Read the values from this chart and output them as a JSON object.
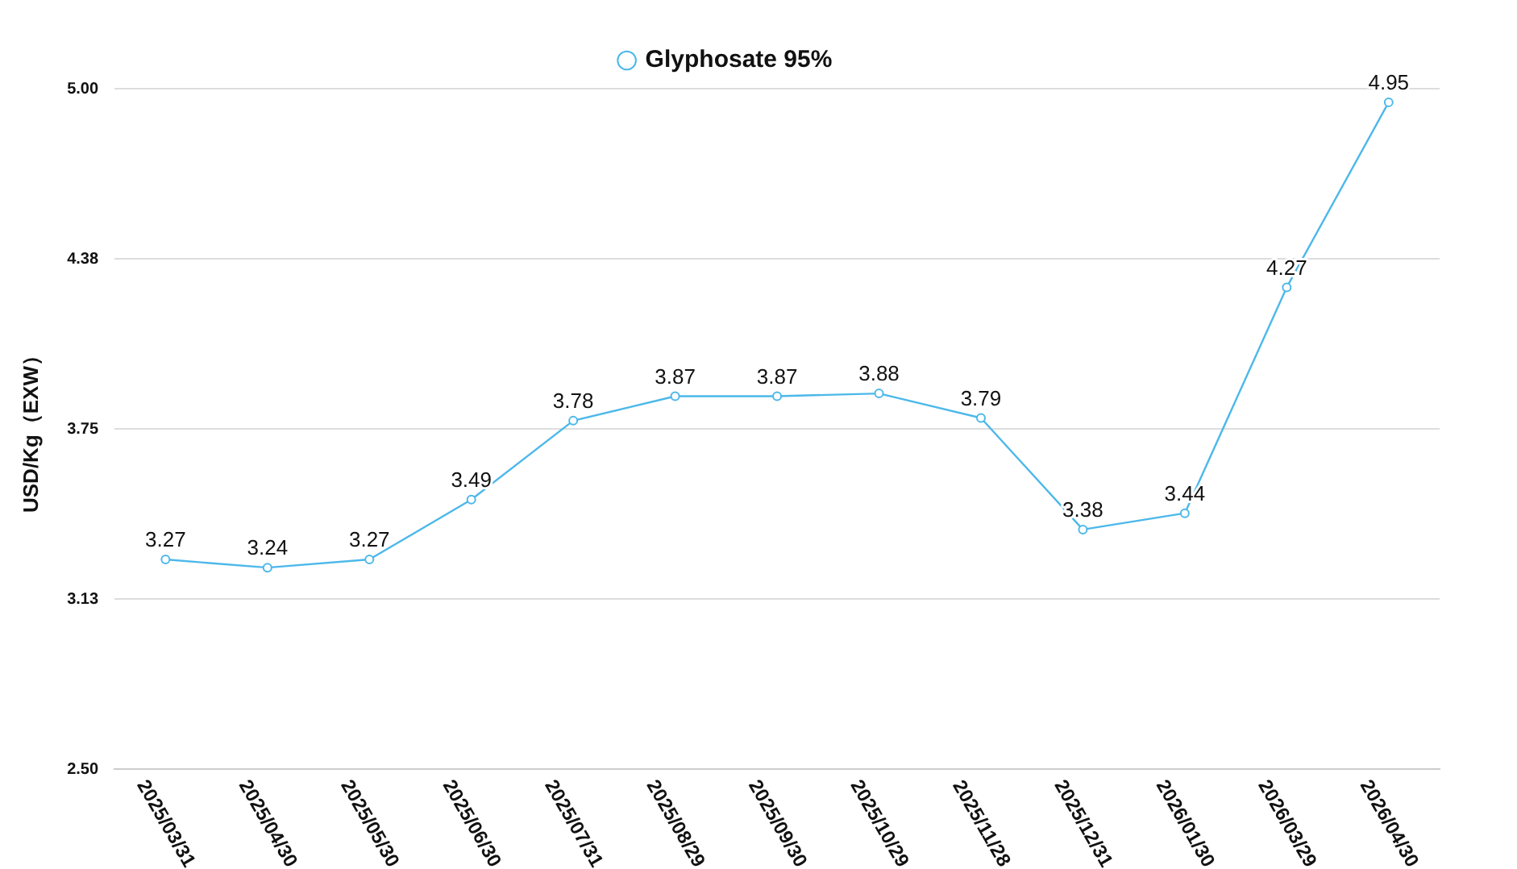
{
  "chart_data": {
    "type": "line",
    "ylabel": "USD/Kg（EXW）",
    "categories": [
      "2025/03/31",
      "2025/04/30",
      "2025/05/30",
      "2025/06/30",
      "2025/07/31",
      "2025/08/29",
      "2025/09/30",
      "2025/10/29",
      "2025/11/28",
      "2025/12/31",
      "2026/01/30",
      "2026/03/29",
      "2026/04/30"
    ],
    "series": [
      {
        "name": "Glyphosate 95%",
        "color": "#4cb8ea",
        "values": [
          3.27,
          3.24,
          3.27,
          3.49,
          3.78,
          3.87,
          3.87,
          3.88,
          3.79,
          3.38,
          3.44,
          4.27,
          4.95
        ]
      }
    ],
    "ylim": [
      2.5,
      5.0
    ],
    "yticks": [
      {
        "value": 2.5,
        "label": "2.50"
      },
      {
        "value": 3.125,
        "label": "3.13"
      },
      {
        "value": 3.75,
        "label": "3.75"
      },
      {
        "value": 4.375,
        "label": "4.38"
      },
      {
        "value": 5.0,
        "label": "5.00"
      }
    ],
    "grid": "y",
    "legend": "top",
    "marker": "circle",
    "line_style": "solid",
    "data_labels": true
  }
}
